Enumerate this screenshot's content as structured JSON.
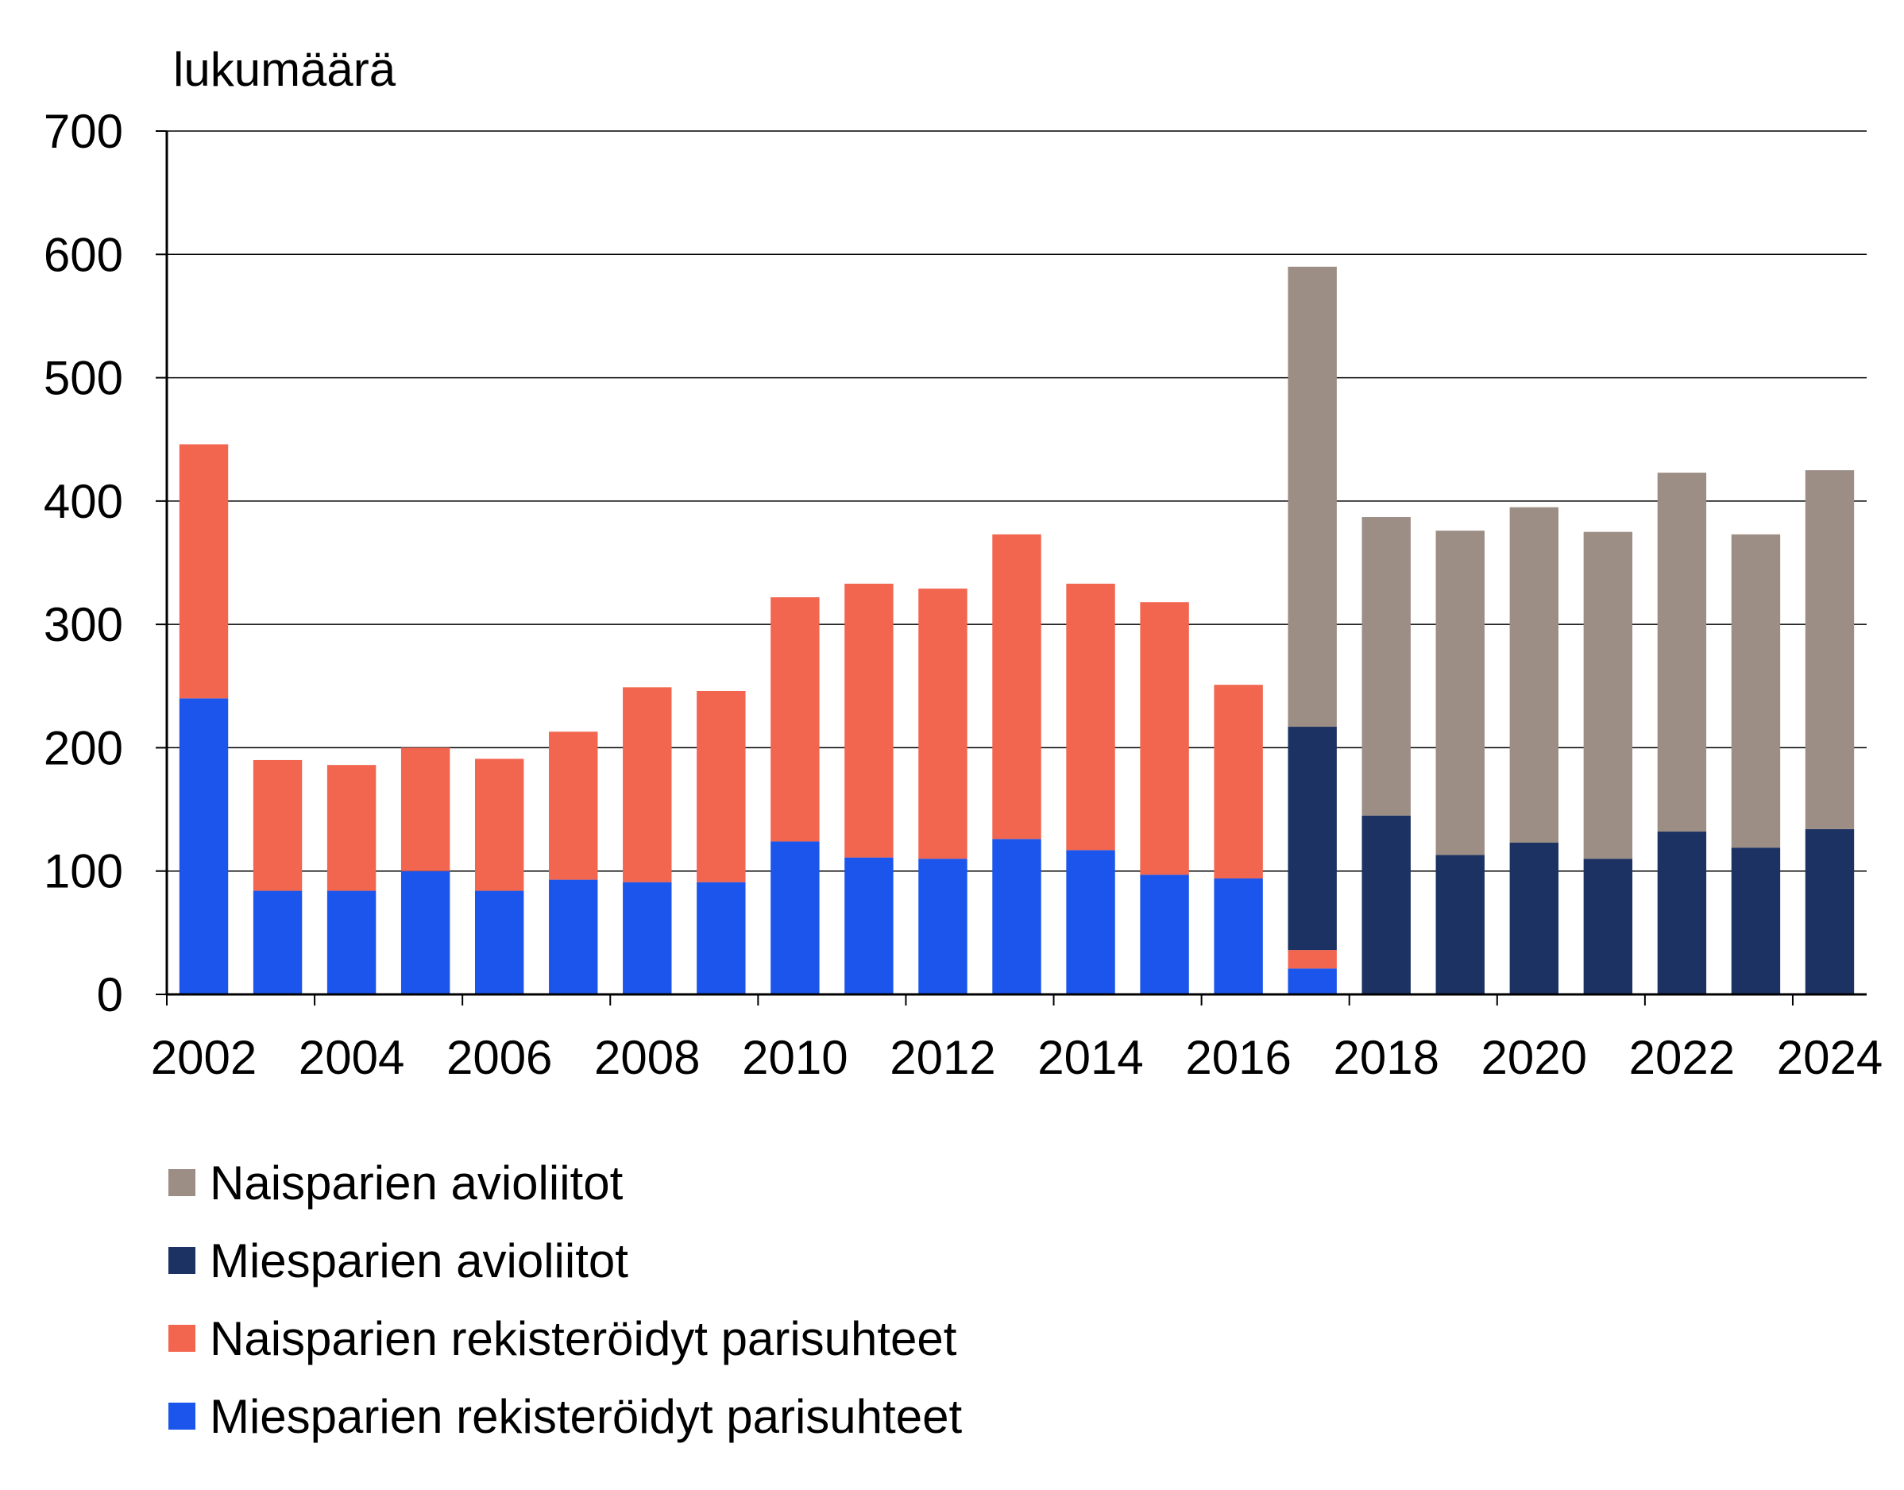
{
  "chart_data": {
    "type": "bar",
    "stacked": true,
    "ylabel": "lukumäärä",
    "ylim": [
      0,
      700
    ],
    "yticks": [
      0,
      100,
      200,
      300,
      400,
      500,
      600,
      700
    ],
    "xtick_labels": [
      "2002",
      "2004",
      "2006",
      "2008",
      "2010",
      "2012",
      "2014",
      "2016",
      "2018",
      "2020",
      "2022",
      "2024"
    ],
    "grid": true,
    "legend_position": "bottom-left",
    "categories": [
      "2002",
      "2003",
      "2004",
      "2005",
      "2006",
      "2007",
      "2008",
      "2009",
      "2010",
      "2011",
      "2012",
      "2013",
      "2014",
      "2015",
      "2016",
      "2017",
      "2018",
      "2019",
      "2020",
      "2021",
      "2022",
      "2023",
      "2024"
    ],
    "series": [
      {
        "name": "Miesparien rekisteröidyt parisuhteet",
        "color": "#1b55eb",
        "values": [
          240,
          84,
          84,
          100,
          84,
          93,
          91,
          91,
          124,
          111,
          110,
          126,
          117,
          97,
          94,
          21,
          0,
          0,
          0,
          0,
          0,
          0,
          0
        ]
      },
      {
        "name": "Naisparien rekisteröidyt parisuhteet",
        "color": "#f2654f",
        "values": [
          206,
          106,
          102,
          100,
          107,
          120,
          158,
          155,
          198,
          222,
          219,
          247,
          216,
          221,
          157,
          15,
          0,
          0,
          0,
          0,
          0,
          0,
          0
        ]
      },
      {
        "name": "Miesparien avioliitot",
        "color": "#1c3262",
        "values": [
          0,
          0,
          0,
          0,
          0,
          0,
          0,
          0,
          0,
          0,
          0,
          0,
          0,
          0,
          0,
          181,
          145,
          113,
          123,
          110,
          132,
          119,
          134
        ]
      },
      {
        "name": "Naisparien avioliitot",
        "color": "#9c8e85",
        "values": [
          0,
          0,
          0,
          0,
          0,
          0,
          0,
          0,
          0,
          0,
          0,
          0,
          0,
          0,
          0,
          373,
          242,
          263,
          272,
          265,
          291,
          254,
          291
        ]
      }
    ],
    "legend_order": [
      "Naisparien avioliitot",
      "Miesparien avioliitot",
      "Naisparien rekisteröidyt parisuhteet",
      "Miesparien rekisteröidyt parisuhteet"
    ]
  }
}
